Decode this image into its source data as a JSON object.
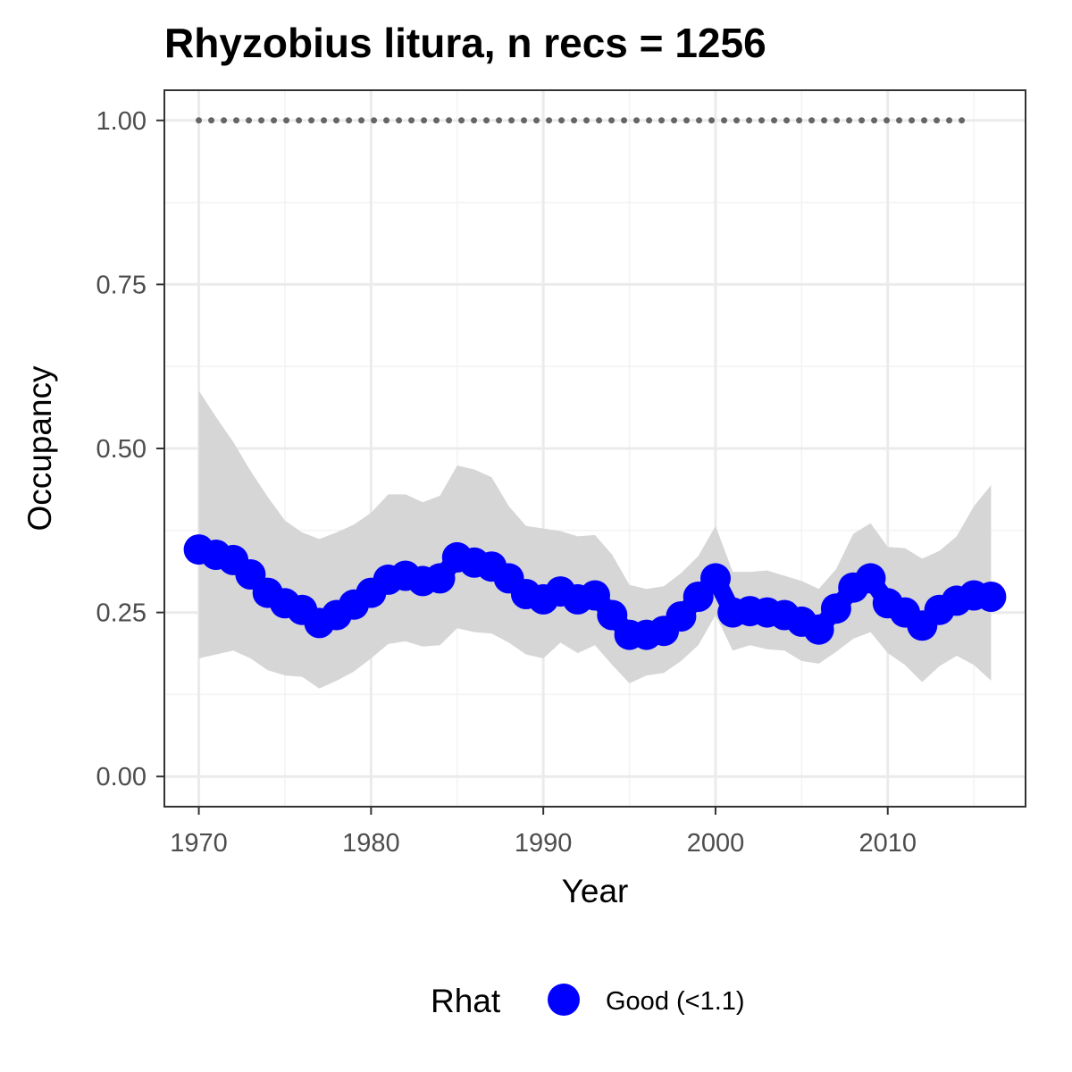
{
  "chart_data": {
    "type": "line",
    "title": "Rhyzobius litura, n recs = 1256",
    "xlabel": "Year",
    "ylabel": "Occupancy",
    "xlim": [
      1968,
      2018
    ],
    "ylim": [
      -0.046,
      1.046
    ],
    "x_ticks": [
      1970,
      1980,
      1990,
      2000,
      2010
    ],
    "x_tick_labels": [
      "1970",
      "1980",
      "1990",
      "2000",
      "2010"
    ],
    "y_ticks": [
      0,
      0.25,
      0.5,
      0.75,
      1.0
    ],
    "y_tick_labels": [
      "0.00",
      "0.25",
      "0.50",
      "0.75",
      "1.00"
    ],
    "grid": true,
    "legend": {
      "title": "Rhat",
      "position": "bottom",
      "entries": [
        {
          "label": "Good (<1.1)",
          "color": "#0000ff"
        }
      ]
    },
    "series": [
      {
        "name": "Good (<1.1)",
        "color": "#0000ff",
        "x": [
          1970,
          1971,
          1972,
          1973,
          1974,
          1975,
          1976,
          1977,
          1978,
          1979,
          1980,
          1981,
          1982,
          1983,
          1984,
          1985,
          1986,
          1987,
          1988,
          1989,
          1990,
          1991,
          1992,
          1993,
          1994,
          1995,
          1996,
          1997,
          1998,
          1999,
          2000,
          2001,
          2002,
          2003,
          2004,
          2005,
          2006,
          2007,
          2008,
          2009,
          2010,
          2011,
          2012,
          2013,
          2014,
          2015,
          2016
        ],
        "y": [
          0.346,
          0.338,
          0.33,
          0.308,
          0.28,
          0.264,
          0.254,
          0.234,
          0.246,
          0.262,
          0.28,
          0.3,
          0.306,
          0.298,
          0.302,
          0.334,
          0.326,
          0.32,
          0.302,
          0.278,
          0.27,
          0.282,
          0.27,
          0.276,
          0.246,
          0.216,
          0.216,
          0.222,
          0.244,
          0.274,
          0.302,
          0.25,
          0.252,
          0.25,
          0.246,
          0.236,
          0.224,
          0.256,
          0.288,
          0.302,
          0.264,
          0.25,
          0.23,
          0.254,
          0.268,
          0.276,
          0.274
        ],
        "lower": [
          0.18,
          0.186,
          0.192,
          0.18,
          0.162,
          0.154,
          0.152,
          0.134,
          0.146,
          0.16,
          0.18,
          0.202,
          0.206,
          0.198,
          0.2,
          0.226,
          0.22,
          0.218,
          0.204,
          0.186,
          0.18,
          0.204,
          0.188,
          0.2,
          0.17,
          0.142,
          0.154,
          0.158,
          0.176,
          0.2,
          0.246,
          0.192,
          0.2,
          0.194,
          0.192,
          0.176,
          0.172,
          0.19,
          0.21,
          0.22,
          0.188,
          0.17,
          0.144,
          0.168,
          0.184,
          0.17,
          0.146
        ],
        "upper": [
          0.588,
          0.548,
          0.51,
          0.466,
          0.426,
          0.39,
          0.372,
          0.362,
          0.372,
          0.384,
          0.402,
          0.43,
          0.43,
          0.418,
          0.428,
          0.474,
          0.468,
          0.456,
          0.412,
          0.382,
          0.378,
          0.374,
          0.366,
          0.368,
          0.338,
          0.292,
          0.286,
          0.29,
          0.31,
          0.336,
          0.382,
          0.312,
          0.312,
          0.314,
          0.306,
          0.298,
          0.286,
          0.316,
          0.37,
          0.386,
          0.35,
          0.348,
          0.332,
          0.344,
          0.366,
          0.412,
          0.444
        ]
      }
    ],
    "reference_line": {
      "x": [
        1970,
        2015
      ],
      "y": 1.0,
      "style": "dotted",
      "color": "#666666"
    },
    "band_color": "#d6d6d6"
  }
}
